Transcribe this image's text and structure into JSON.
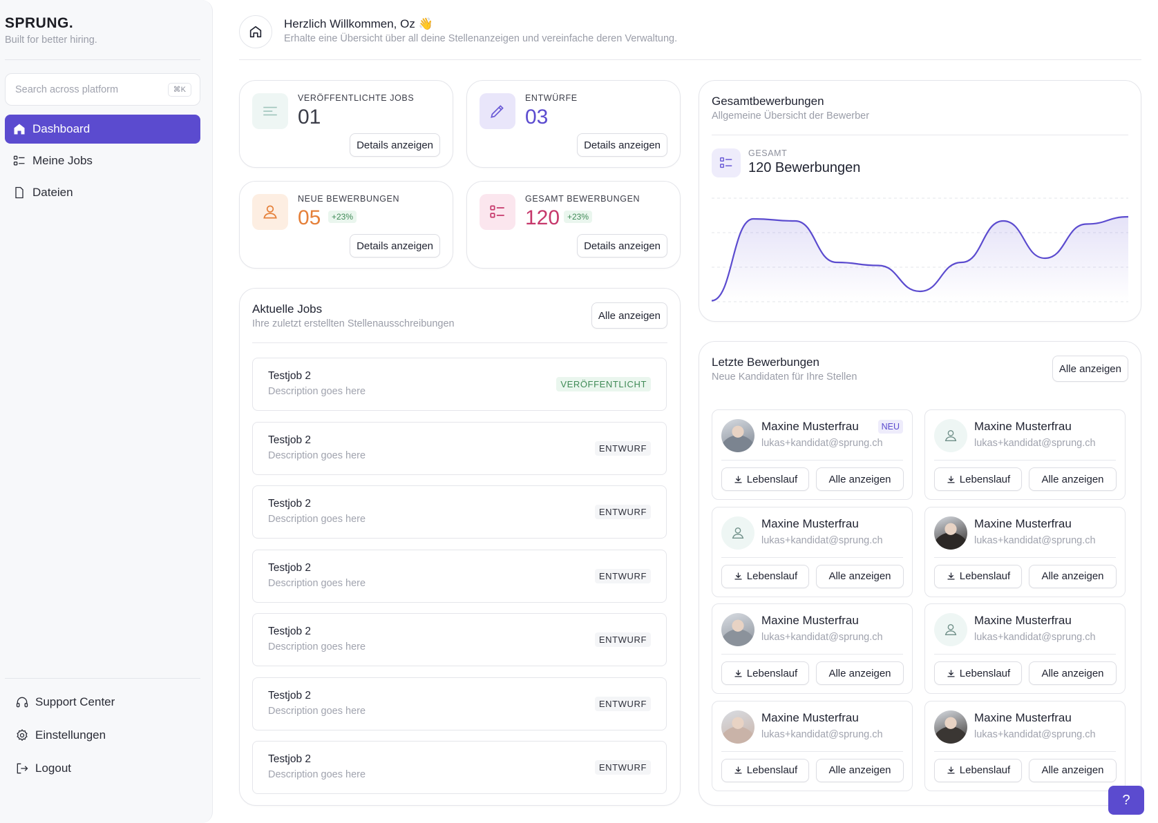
{
  "sidebar": {
    "brand": "SPRUNG.",
    "tagline": "Built for better hiring.",
    "search": {
      "placeholder": "Search across platform",
      "shortcut": "⌘K"
    },
    "nav": [
      {
        "label": "Dashboard",
        "icon": "home-icon",
        "active": true
      },
      {
        "label": "Meine Jobs",
        "icon": "list-icon",
        "active": false
      },
      {
        "label": "Dateien",
        "icon": "file-icon",
        "active": false
      }
    ],
    "footer": [
      {
        "label": "Support Center",
        "icon": "headset-icon"
      },
      {
        "label": "Einstellungen",
        "icon": "gear-icon"
      },
      {
        "label": "Logout",
        "icon": "logout-icon"
      }
    ]
  },
  "header": {
    "title": "Herzlich Willkommen, Oz 👋",
    "subtitle": "Erhalte eine Übersicht über all deine Stellenanzeigen und vereinfache deren Verwaltung."
  },
  "stats": [
    {
      "label": "VERÖFFENTLICHTE JOBS",
      "value": "01",
      "delta": "",
      "button": "Details anzeigen",
      "icon": "lines-icon",
      "color": "#3b3d48",
      "icon_bg": "#eef6f4",
      "icon_color": "#9fc4bb"
    },
    {
      "label": "ENTWÜRFE",
      "value": "03",
      "delta": "",
      "button": "Details anzeigen",
      "icon": "pencil-icon",
      "color": "#5b4bcf",
      "icon_bg": "#e9e6fa",
      "icon_color": "#6a5ad6"
    },
    {
      "label": "NEUE BEWERBUNGEN",
      "value": "05",
      "delta": "+23%",
      "button": "Details anzeigen",
      "icon": "user-icon",
      "color": "#e5803a",
      "icon_bg": "#fdeee2",
      "icon_color": "#e5803a"
    },
    {
      "label": "GESAMT BEWERBUNGEN",
      "value": "120",
      "delta": "+23%",
      "button": "Details anzeigen",
      "icon": "list-check-icon",
      "color": "#c6386b",
      "icon_bg": "#fbe6ee",
      "icon_color": "#c6386b"
    }
  ],
  "jobs": {
    "title": "Aktuelle Jobs",
    "subtitle": "Ihre zuletzt erstellten Stellenausschreibungen",
    "button": "Alle anzeigen",
    "items": [
      {
        "title": "Testjob 2",
        "description": "Description goes here",
        "status": "VERÖFFENTLICHT",
        "published": true
      },
      {
        "title": "Testjob 2",
        "description": "Description goes here",
        "status": "ENTWURF",
        "published": false
      },
      {
        "title": "Testjob 2",
        "description": "Description goes here",
        "status": "ENTWURF",
        "published": false
      },
      {
        "title": "Testjob 2",
        "description": "Description goes here",
        "status": "ENTWURF",
        "published": false
      },
      {
        "title": "Testjob 2",
        "description": "Description goes here",
        "status": "ENTWURF",
        "published": false
      },
      {
        "title": "Testjob 2",
        "description": "Description goes here",
        "status": "ENTWURF",
        "published": false
      },
      {
        "title": "Testjob 2",
        "description": "Description goes here",
        "status": "ENTWURF",
        "published": false
      }
    ]
  },
  "overview": {
    "title": "Gesamtbewerbungen",
    "subtitle": "Allgemeine Übersicht der Bewerber",
    "total_label": "GESAMT",
    "total_value": "120 Bewerbungen",
    "accent": "#5b4bcf"
  },
  "chart_data": {
    "type": "area",
    "x": [
      0,
      1,
      2,
      3,
      4,
      5,
      6,
      7,
      8,
      9,
      10
    ],
    "values": [
      1,
      80,
      78,
      38,
      35,
      10,
      38,
      78,
      42,
      75,
      82
    ],
    "ylim": [
      0,
      100
    ],
    "grid": true,
    "xlabel": "",
    "ylabel": ""
  },
  "candidates": {
    "title": "Letzte Bewerbungen",
    "subtitle": "Neue Kandidaten für Ihre Stellen",
    "button": "Alle anzeigen",
    "cv_label": "Lebenslauf",
    "view_label": "Alle anzeigen",
    "items": [
      {
        "name": "Maxine Musterfrau",
        "email": "lukas+kandidat@sprung.ch",
        "badge": "NEU",
        "avatar": "photo",
        "tone": "#7b8490"
      },
      {
        "name": "Maxine Musterfrau",
        "email": "lukas+kandidat@sprung.ch",
        "badge": "",
        "avatar": "placeholder",
        "tone": ""
      },
      {
        "name": "Maxine Musterfrau",
        "email": "lukas+kandidat@sprung.ch",
        "badge": "",
        "avatar": "placeholder",
        "tone": ""
      },
      {
        "name": "Maxine Musterfrau",
        "email": "lukas+kandidat@sprung.ch",
        "badge": "",
        "avatar": "photo",
        "tone": "#2c2826"
      },
      {
        "name": "Maxine Musterfrau",
        "email": "lukas+kandidat@sprung.ch",
        "badge": "",
        "avatar": "photo",
        "tone": "#8b929b"
      },
      {
        "name": "Maxine Musterfrau",
        "email": "lukas+kandidat@sprung.ch",
        "badge": "",
        "avatar": "placeholder",
        "tone": ""
      },
      {
        "name": "Maxine Musterfrau",
        "email": "lukas+kandidat@sprung.ch",
        "badge": "",
        "avatar": "photo",
        "tone": "#c9b3a8"
      },
      {
        "name": "Maxine Musterfrau",
        "email": "lukas+kandidat@sprung.ch",
        "badge": "",
        "avatar": "photo",
        "tone": "#3a3633"
      }
    ]
  },
  "help_button": "?"
}
